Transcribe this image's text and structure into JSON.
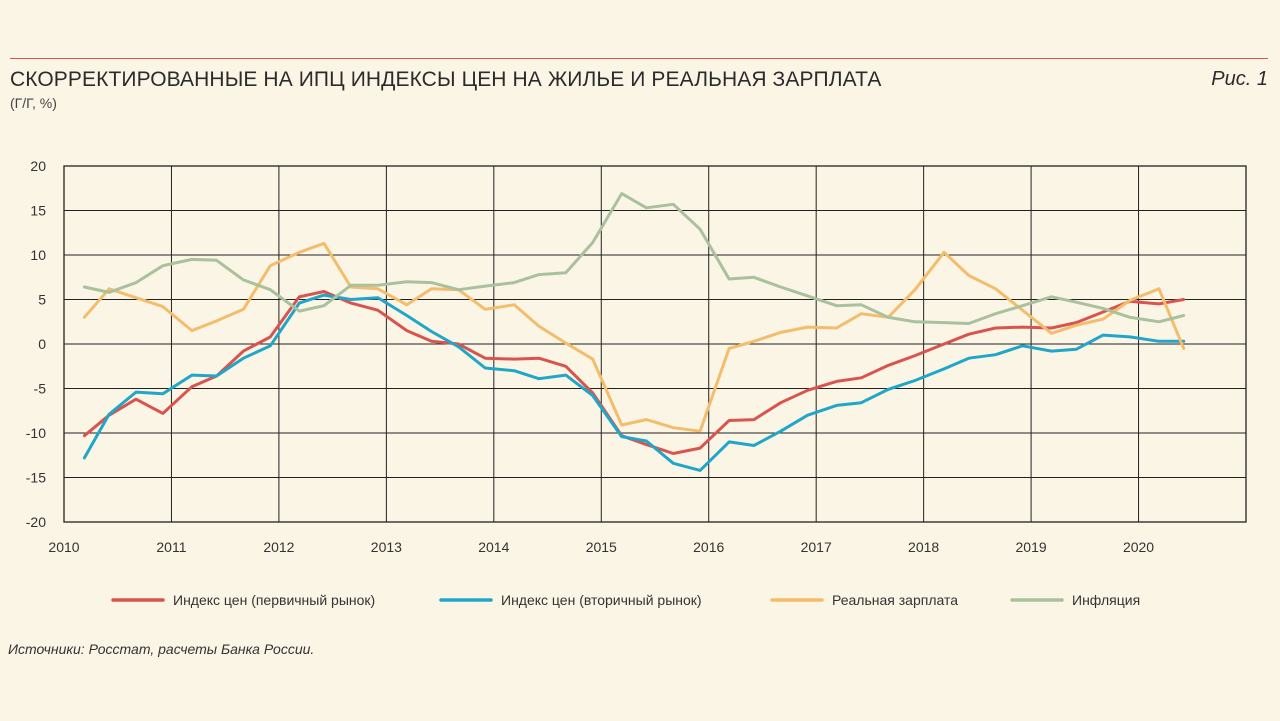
{
  "figure": {
    "title": "СКОРРЕКТИРОВАННЫЕ НА ИПЦ ИНДЕКСЫ ЦЕН НА ЖИЛЬЕ И РЕАЛЬНАЯ ЗАРПЛАТА",
    "subtitle": "(Г/Г, %)",
    "label": "Рис. 1",
    "source": "Источники: Росстат, расчеты Банка России."
  },
  "chart_data": {
    "type": "line",
    "title": "СКОРРЕКТИРОВАННЫЕ НА ИПЦ ИНДЕКСЫ ЦЕН НА ЖИЛЬЕ И РЕАЛЬНАЯ ЗАРПЛАТА",
    "ylabel": "(Г/Г, %)",
    "xlabel": "",
    "xlim": [
      2010,
      2021
    ],
    "ylim": [
      -20,
      20
    ],
    "grid": true,
    "legend_position": "bottom",
    "x_tick_labels": [
      "2010",
      "2011",
      "2012",
      "2013",
      "2014",
      "2015",
      "2016",
      "2017",
      "2018",
      "2019",
      "2020"
    ],
    "y_tick_labels": [
      "20",
      "15",
      "10",
      "5",
      "0",
      "-5",
      "-10",
      "-15",
      "-20"
    ],
    "series": [
      {
        "name": "Индекс цен (первичный рынок)",
        "color": "#d9534f",
        "x": [
          2010.19,
          2010.42,
          2010.67,
          2010.92,
          2011.19,
          2011.42,
          2011.67,
          2011.92,
          2012.19,
          2012.42,
          2012.67,
          2012.92,
          2013.19,
          2013.42,
          2013.67,
          2013.92,
          2014.19,
          2014.42,
          2014.67,
          2014.92,
          2015.19,
          2015.42,
          2015.67,
          2015.92,
          2016.19,
          2016.42,
          2016.67,
          2016.92,
          2017.19,
          2017.42,
          2017.67,
          2017.92,
          2018.19,
          2018.42,
          2018.67,
          2018.92,
          2019.19,
          2019.42,
          2019.67,
          2019.92,
          2020.19,
          2020.42
        ],
        "values": [
          -10.3,
          -8.0,
          -6.2,
          -7.8,
          -4.8,
          -3.6,
          -0.8,
          0.8,
          5.3,
          5.9,
          4.6,
          3.8,
          1.5,
          0.3,
          0.0,
          -1.6,
          -1.7,
          -1.6,
          -2.5,
          -5.5,
          -10.3,
          -11.3,
          -12.3,
          -11.7,
          -8.6,
          -8.5,
          -6.6,
          -5.2,
          -4.2,
          -3.8,
          -2.4,
          -1.3,
          0.0,
          1.1,
          1.8,
          1.9,
          1.8,
          2.4,
          3.6,
          4.8,
          4.5,
          5.0
        ]
      },
      {
        "name": "Индекс цен (вторичный рынок)",
        "color": "#1fa6c9",
        "x": [
          2010.19,
          2010.42,
          2010.67,
          2010.92,
          2011.19,
          2011.42,
          2011.67,
          2011.92,
          2012.19,
          2012.42,
          2012.67,
          2012.92,
          2013.19,
          2013.42,
          2013.67,
          2013.92,
          2014.19,
          2014.42,
          2014.67,
          2014.92,
          2015.19,
          2015.42,
          2015.67,
          2015.92,
          2016.19,
          2016.42,
          2016.67,
          2016.92,
          2017.19,
          2017.42,
          2017.67,
          2017.92,
          2018.19,
          2018.42,
          2018.67,
          2018.92,
          2019.19,
          2019.42,
          2019.67,
          2019.92,
          2020.19,
          2020.42
        ],
        "values": [
          -12.8,
          -7.9,
          -5.4,
          -5.6,
          -3.5,
          -3.6,
          -1.6,
          -0.2,
          4.6,
          5.5,
          5.0,
          5.2,
          3.2,
          1.4,
          -0.3,
          -2.7,
          -3.0,
          -3.9,
          -3.5,
          -5.8,
          -10.4,
          -10.9,
          -13.4,
          -14.2,
          -11.0,
          -11.4,
          -9.8,
          -8.0,
          -6.9,
          -6.6,
          -5.1,
          -4.1,
          -2.8,
          -1.6,
          -1.2,
          -0.2,
          -0.8,
          -0.6,
          1.0,
          0.8,
          0.3,
          0.3
        ]
      },
      {
        "name": "Реальная зарплата",
        "color": "#f3bd6b",
        "x": [
          2010.19,
          2010.42,
          2010.67,
          2010.92,
          2011.19,
          2011.42,
          2011.67,
          2011.92,
          2012.19,
          2012.42,
          2012.67,
          2012.92,
          2013.19,
          2013.42,
          2013.67,
          2013.92,
          2014.19,
          2014.42,
          2014.67,
          2014.92,
          2015.19,
          2015.42,
          2015.67,
          2015.92,
          2016.19,
          2016.42,
          2016.67,
          2016.92,
          2017.19,
          2017.42,
          2017.67,
          2017.92,
          2018.19,
          2018.42,
          2018.67,
          2018.92,
          2019.19,
          2019.42,
          2019.67,
          2019.92,
          2020.19,
          2020.42
        ],
        "values": [
          3.0,
          6.2,
          5.2,
          4.2,
          1.5,
          2.6,
          3.9,
          8.8,
          10.3,
          11.3,
          6.4,
          6.2,
          4.4,
          6.2,
          6.1,
          3.9,
          4.4,
          2.0,
          0.1,
          -1.7,
          -9.1,
          -8.5,
          -9.4,
          -9.8,
          -0.5,
          0.3,
          1.3,
          1.9,
          1.8,
          3.4,
          3.0,
          6.1,
          10.3,
          7.7,
          6.2,
          3.8,
          1.2,
          2.1,
          2.8,
          4.9,
          6.2,
          -0.5
        ]
      },
      {
        "name": "Инфляция",
        "color": "#a9c19c",
        "x": [
          2010.19,
          2010.42,
          2010.67,
          2010.92,
          2011.19,
          2011.42,
          2011.67,
          2011.92,
          2012.19,
          2012.42,
          2012.67,
          2012.92,
          2013.19,
          2013.42,
          2013.67,
          2013.92,
          2014.19,
          2014.42,
          2014.67,
          2014.92,
          2015.19,
          2015.42,
          2015.67,
          2015.92,
          2016.19,
          2016.42,
          2016.67,
          2016.92,
          2017.19,
          2017.42,
          2017.67,
          2017.92,
          2018.19,
          2018.42,
          2018.67,
          2018.92,
          2019.19,
          2019.42,
          2019.67,
          2019.92,
          2020.19,
          2020.42
        ],
        "values": [
          6.4,
          5.8,
          6.9,
          8.8,
          9.5,
          9.4,
          7.2,
          6.1,
          3.7,
          4.3,
          6.6,
          6.6,
          7.0,
          6.9,
          6.1,
          6.5,
          6.9,
          7.8,
          8.0,
          11.4,
          16.9,
          15.3,
          15.7,
          12.9,
          7.3,
          7.5,
          6.4,
          5.4,
          4.3,
          4.4,
          3.0,
          2.5,
          2.4,
          2.3,
          3.4,
          4.3,
          5.3,
          4.7,
          4.0,
          3.0,
          2.5,
          3.2
        ]
      }
    ]
  }
}
